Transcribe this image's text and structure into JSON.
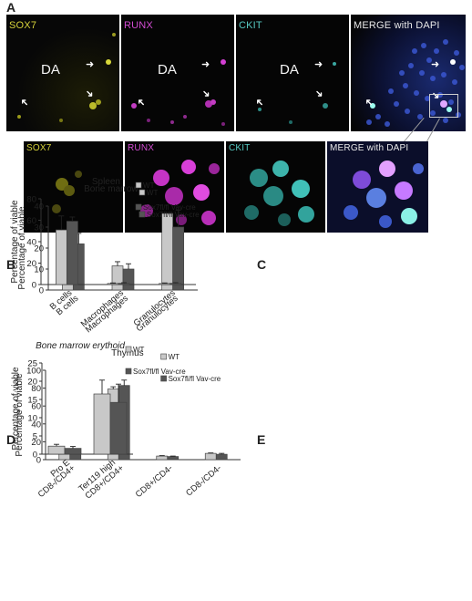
{
  "panel_letters": {
    "a": "A",
    "b": "B",
    "c": "C",
    "d": "D",
    "e": "E"
  },
  "microscopy": {
    "top_labels": [
      "SOX7",
      "RUNX",
      "CKIT",
      "MERGE with DAPI"
    ],
    "bottom_labels": [
      "SOX7",
      "RUNX",
      "CKIT",
      "MERGE with DAPI"
    ],
    "region_label": "DA",
    "channel_colors": {
      "sox7": "#cfcf2a",
      "runx": "#d23fd2",
      "ckit": "#3fc9c0",
      "dapi": "#3550c8"
    }
  },
  "legend": {
    "wt": "WT",
    "cre": "Sox7fl/fl Vav-cre"
  },
  "colors": {
    "wt": "#c8c8c8",
    "cre": "#555555",
    "axis": "#333333"
  },
  "chart_data": [
    {
      "id": "B",
      "type": "bar",
      "title": "Bone marrow",
      "title_italic": false,
      "ylabel": "Percentage of viable",
      "ylim": [
        0,
        40
      ],
      "yticks": [
        0,
        10,
        20,
        30,
        40
      ],
      "categories": [
        "B cells",
        "Macrophages",
        "Granulocytes"
      ],
      "series": [
        {
          "name": "WT",
          "values": [
            23.5,
            11.5,
            36.5
          ],
          "errors": [
            3.5,
            2.0,
            0.0
          ]
        },
        {
          "name": "Sox7fl/fl Vav-cre",
          "values": [
            22.0,
            10.0,
            30.0
          ],
          "errors": [
            5.0,
            2.5,
            8.0
          ]
        }
      ]
    },
    {
      "id": "C",
      "type": "bar",
      "title": "Spleen",
      "title_italic": false,
      "ylabel": "Percentage of viable",
      "ylim": [
        0,
        80
      ],
      "yticks": [
        0,
        20,
        40,
        60,
        80
      ],
      "categories": [
        "B cells",
        "Macrophages",
        "Granulocytes"
      ],
      "series": [
        {
          "name": "WT",
          "values": [
            51,
            1,
            1
          ],
          "errors": [
            13,
            0.5,
            0.5
          ]
        },
        {
          "name": "Sox7fl/fl Vav-cre",
          "values": [
            59,
            1.2,
            1.2
          ],
          "errors": [
            4,
            0.5,
            0.5
          ]
        }
      ]
    },
    {
      "id": "D",
      "type": "bar",
      "title": "Thymus",
      "title_italic": false,
      "ylabel": "Percentage of viable",
      "ylim": [
        0,
        100
      ],
      "yticks": [
        0,
        20,
        40,
        60,
        80,
        100
      ],
      "categories": [
        "CD8-/CD4+",
        "CD8+/CD4+",
        "CD8+/CD4-",
        "CD8-/CD4-"
      ],
      "series": [
        {
          "name": "WT",
          "values": [
            9,
            79,
            4,
            7
          ],
          "errors": [
            1.5,
            2.5,
            0.5,
            0.5
          ]
        },
        {
          "name": "Sox7fl/fl Vav-cre",
          "values": [
            7.5,
            83,
            3.5,
            6
          ],
          "errors": [
            3,
            6,
            0.5,
            1
          ]
        }
      ]
    },
    {
      "id": "E",
      "type": "bar",
      "title": "Bone marrow erythoid",
      "title_italic": true,
      "ylabel": "Percentage of viable",
      "ylim": [
        0,
        25
      ],
      "yticks": [
        0,
        5,
        10,
        15,
        20,
        25
      ],
      "categories": [
        "Pro E",
        "Ter119 high"
      ],
      "series": [
        {
          "name": "WT",
          "values": [
            2.2,
            16.5
          ],
          "errors": [
            0.5,
            3.8
          ]
        },
        {
          "name": "Sox7fl/fl Vav-cre",
          "values": [
            1.6,
            14.2
          ],
          "errors": [
            0.5,
            5.0
          ]
        }
      ]
    }
  ]
}
